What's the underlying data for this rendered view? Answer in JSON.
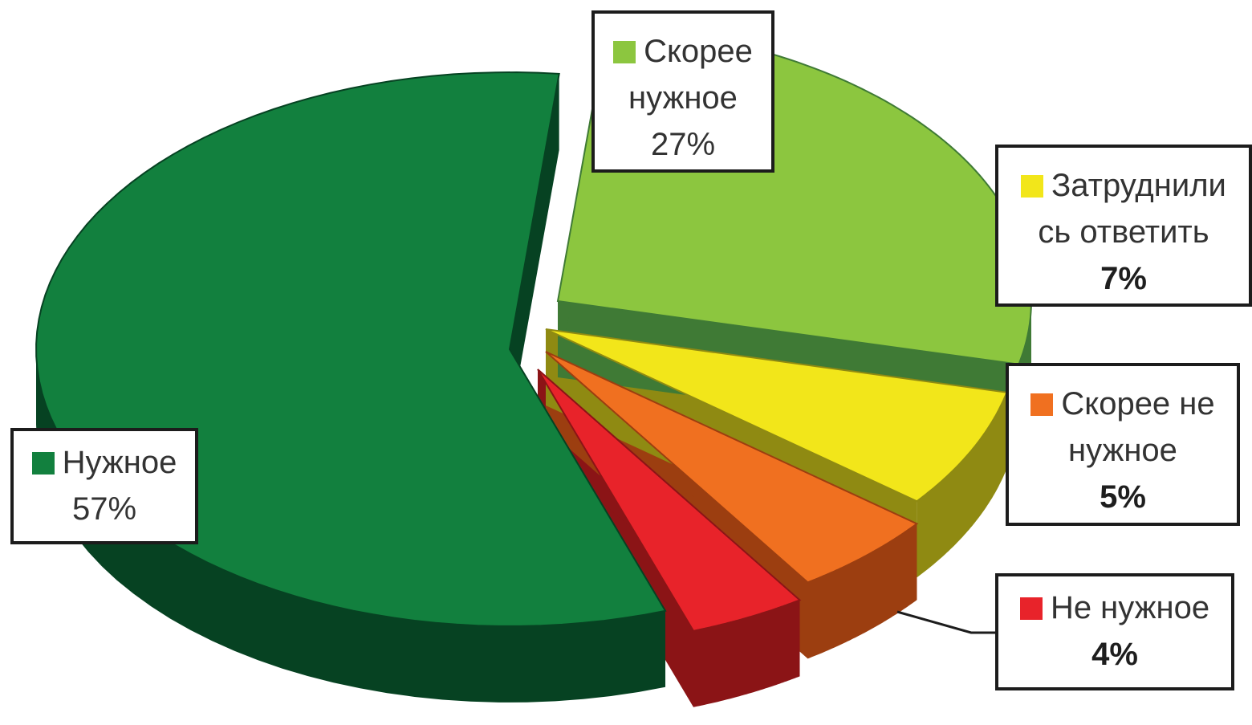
{
  "chart_data": {
    "type": "pie",
    "title": "",
    "three_d": true,
    "slices": [
      {
        "label_lines": [
          "Скорее",
          "нужное"
        ],
        "value": 27,
        "pct_text": "27%",
        "color": "#8cc63f",
        "side_color": "#3f7a35",
        "bold_pct": false
      },
      {
        "label_lines": [
          "Затруднили",
          "сь ответить"
        ],
        "value": 7,
        "pct_text": "7%",
        "color": "#f2e61a",
        "side_color": "#8f8a12",
        "bold_pct": true
      },
      {
        "label_lines": [
          "Скорее не",
          "нужное"
        ],
        "value": 5,
        "pct_text": "5%",
        "color": "#f07020",
        "side_color": "#9c3e10",
        "bold_pct": true
      },
      {
        "label_lines": [
          "Не нужное"
        ],
        "value": 4,
        "pct_text": "4%",
        "color": "#e8232a",
        "side_color": "#8b1416",
        "bold_pct": true
      },
      {
        "label_lines": [
          "Нужное"
        ],
        "value": 57,
        "pct_text": "57%",
        "color": "#12803e",
        "side_color": "#064222",
        "bold_pct": false
      }
    ],
    "legend": "labels-with-boxes"
  }
}
